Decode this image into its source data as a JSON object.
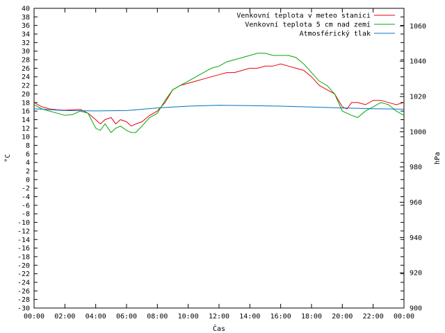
{
  "chart_data": {
    "type": "line",
    "xlabel": "Čas",
    "ylabel_left": "°C",
    "ylabel_right": "hPa",
    "x_ticks": [
      "00:00",
      "02:00",
      "04:00",
      "06:00",
      "08:00",
      "10:00",
      "12:00",
      "14:00",
      "16:00",
      "18:00",
      "20:00",
      "22:00",
      "00:00"
    ],
    "x_range_hours": [
      0,
      24
    ],
    "y_left_range": [
      -30,
      40
    ],
    "y_left_ticks": [
      -30,
      -28,
      -26,
      -24,
      -22,
      -20,
      -18,
      -16,
      -14,
      -12,
      -10,
      -8,
      -6,
      -4,
      -2,
      0,
      2,
      4,
      6,
      8,
      10,
      12,
      14,
      16,
      18,
      20,
      22,
      24,
      26,
      28,
      30,
      32,
      34,
      36,
      38,
      40
    ],
    "y_right_range": [
      900,
      1070
    ],
    "y_right_ticks": [
      900,
      920,
      940,
      960,
      980,
      1000,
      1020,
      1040,
      1060
    ],
    "grid": false,
    "legend_position": "top-right",
    "series": [
      {
        "name": "Venkovní teplota v meteo stanici",
        "axis": "left",
        "color": "#e8000b",
        "x": [
          0,
          0.5,
          1,
          1.5,
          2,
          2.5,
          3,
          3.5,
          4,
          4.3,
          4.6,
          5,
          5.3,
          5.6,
          6,
          6.3,
          6.6,
          7,
          7.5,
          8,
          8.5,
          9,
          9.5,
          10,
          10.5,
          11,
          11.5,
          12,
          12.5,
          13,
          13.5,
          14,
          14.5,
          15,
          15.5,
          16,
          16.5,
          17,
          17.5,
          18,
          18.5,
          19,
          19.5,
          20,
          20.3,
          20.6,
          21,
          21.5,
          22,
          22.5,
          23,
          23.5,
          24
        ],
        "y": [
          18,
          17,
          16.5,
          16.3,
          16.2,
          16.3,
          16.4,
          15.5,
          14,
          13,
          14,
          14.5,
          13,
          14,
          13.5,
          12.5,
          13,
          13.5,
          15,
          16,
          18,
          21,
          22,
          22.5,
          23,
          23.5,
          24,
          24.5,
          25,
          25,
          25.5,
          26,
          26,
          26.5,
          26.5,
          27,
          26.5,
          26,
          25.5,
          24,
          22,
          21,
          20,
          17,
          16.5,
          18,
          18,
          17.5,
          18.5,
          18.5,
          18,
          17.5,
          18
        ]
      },
      {
        "name": "Venkovní teplota 5 cm nad zemí",
        "axis": "left",
        "color": "#00a600",
        "x": [
          0,
          0.5,
          1,
          1.5,
          2,
          2.5,
          3,
          3.5,
          4,
          4.3,
          4.6,
          5,
          5.3,
          5.6,
          6,
          6.3,
          6.6,
          7,
          7.5,
          8,
          8.5,
          9,
          9.5,
          10,
          10.5,
          11,
          11.5,
          12,
          12.5,
          13,
          13.5,
          14,
          14.5,
          15,
          15.5,
          16,
          16.5,
          17,
          17.5,
          18,
          18.5,
          19,
          19.5,
          20,
          20.3,
          20.6,
          21,
          21.5,
          22,
          22.5,
          23,
          23.5,
          24
        ],
        "y": [
          17.5,
          16.5,
          16,
          15.5,
          15,
          15.2,
          16,
          15.5,
          12,
          11.5,
          13,
          11,
          12,
          12.5,
          11.5,
          11,
          11,
          12.5,
          14.5,
          15.5,
          18.5,
          21,
          22,
          23,
          24,
          25,
          26,
          26.5,
          27.5,
          28,
          28.5,
          29,
          29.5,
          29.5,
          29,
          29,
          29,
          28.5,
          27,
          25,
          23,
          22,
          20,
          16,
          15.5,
          15,
          14.5,
          16,
          17,
          18,
          17.5,
          16,
          15
        ]
      },
      {
        "name": "Atmosférický tlak",
        "axis": "right",
        "color": "#0070c0",
        "x": [
          0,
          2,
          4,
          6,
          8,
          10,
          12,
          14,
          16,
          18,
          20,
          22,
          24
        ],
        "y": [
          1013,
          1012,
          1011.8,
          1012,
          1013.5,
          1014.5,
          1015,
          1014.8,
          1014.5,
          1014,
          1013.5,
          1013,
          1012.8
        ]
      }
    ]
  }
}
